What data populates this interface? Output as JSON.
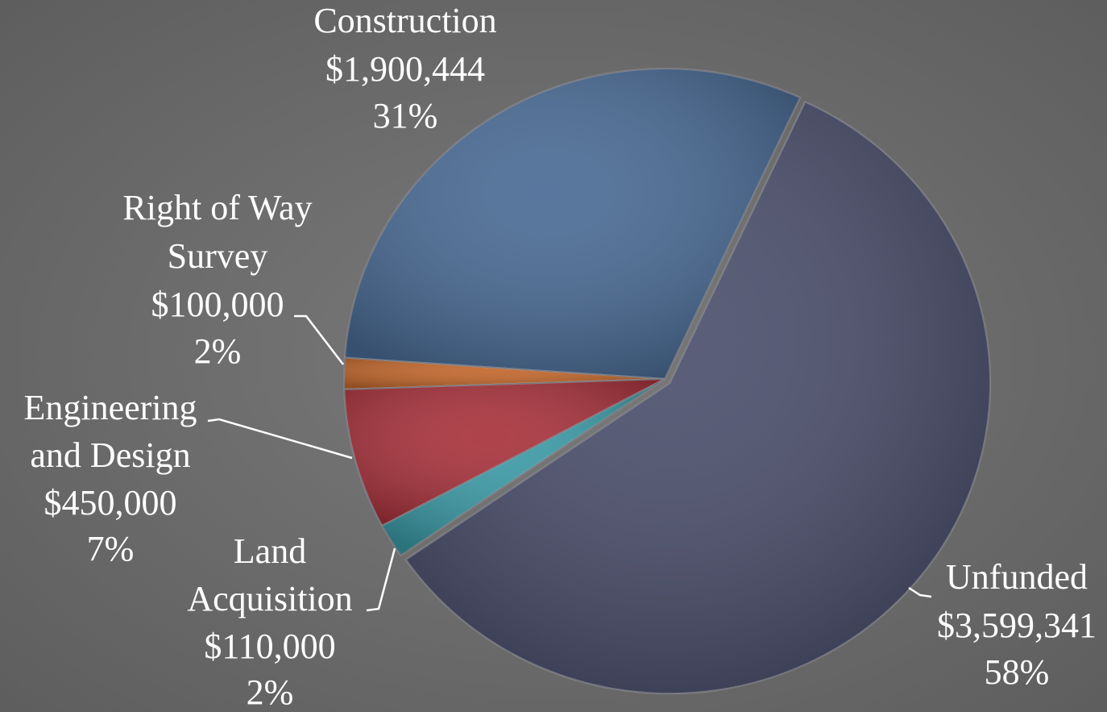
{
  "chart_data": {
    "type": "pie",
    "categories": [
      [
        "Construction"
      ],
      [
        "Right of Way",
        "Survey"
      ],
      [
        "Engineering",
        "and Design"
      ],
      [
        "Land",
        "Acquisition"
      ],
      [
        "Unfunded"
      ]
    ],
    "values": [
      1900444,
      100000,
      450000,
      110000,
      3599341
    ],
    "value_labels": [
      "$1,900,444",
      "$100,000",
      "$450,000",
      "$110,000",
      "$3,599,341"
    ],
    "percent_labels": [
      "31%",
      "2%",
      "7%",
      "2%",
      "58%"
    ],
    "colors": [
      "#4a6b95",
      "#c2672c",
      "#a8323c",
      "#3b9aa6",
      "#4b4f6c"
    ]
  }
}
